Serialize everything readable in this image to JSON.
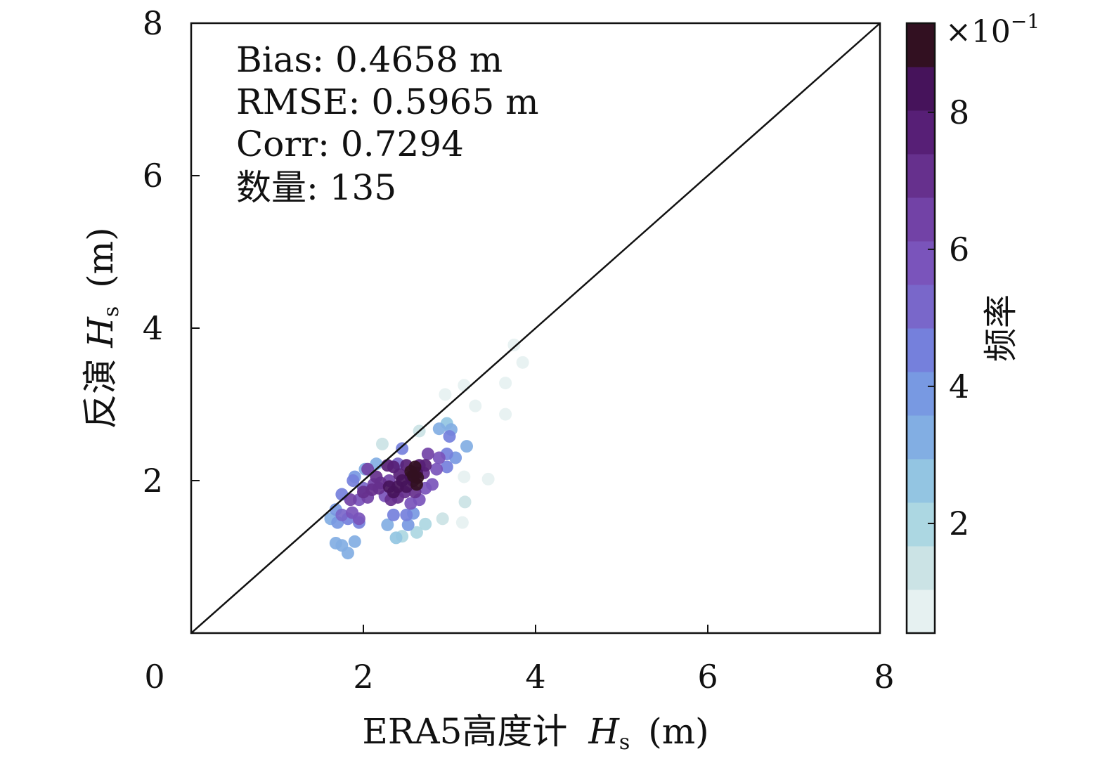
{
  "chart_data": {
    "type": "scatter",
    "xlabel_prefix": "ERA5高度计",
    "xlabel_var": "H",
    "xlabel_sub": "s",
    "xlabel_unit": "(m)",
    "ylabel_prefix": "反演",
    "ylabel_var": "H",
    "ylabel_sub": "s",
    "ylabel_unit": "(m)",
    "xlim": [
      0,
      8
    ],
    "ylim": [
      0,
      8
    ],
    "xticks": [
      "0",
      "2",
      "4",
      "6",
      "8"
    ],
    "yticks": [
      "2",
      "4",
      "6",
      "8"
    ],
    "reference_line": "y = x",
    "stats": [
      "Bias: 0.4658 m",
      "RMSE: 0.5965 m",
      "Corr: 0.7294",
      "数量: 135"
    ],
    "colorbar": {
      "label": "频率",
      "scale_base": "×10",
      "scale_exp": "−1",
      "range": [
        0.4,
        9.3
      ],
      "ticks": [
        "2",
        "4",
        "6",
        "8"
      ],
      "tick_values": [
        2,
        4,
        6,
        8
      ],
      "colors": [
        "#e6f1f1",
        "#cbe3e5",
        "#acd7e2",
        "#93c5e2",
        "#82aee3",
        "#7899e2",
        "#7580dc",
        "#7967ca",
        "#7a54bb",
        "#7242a6",
        "#66308d",
        "#571f76",
        "#46135b",
        "#321021"
      ]
    },
    "points": [
      [
        3.75,
        3.78,
        0.4
      ],
      [
        3.85,
        3.55,
        0.6
      ],
      [
        3.65,
        3.28,
        0.7
      ],
      [
        3.17,
        3.25,
        0.6
      ],
      [
        2.95,
        3.13,
        0.8
      ],
      [
        3.3,
        2.98,
        1.0
      ],
      [
        3.65,
        2.87,
        0.7
      ],
      [
        2.65,
        2.65,
        1.2
      ],
      [
        2.22,
        2.48,
        1.3
      ],
      [
        3.45,
        2.02,
        0.9
      ],
      [
        3.17,
        2.05,
        1.0
      ],
      [
        2.92,
        1.5,
        1.1
      ],
      [
        3.15,
        1.45,
        0.8
      ],
      [
        3.18,
        1.72,
        1.1
      ],
      [
        2.72,
        1.43,
        1.8
      ],
      [
        2.62,
        1.32,
        1.9
      ],
      [
        2.38,
        1.25,
        2.4
      ],
      [
        2.45,
        1.27,
        2.3
      ],
      [
        1.82,
        1.05,
        3.0
      ],
      [
        1.75,
        1.15,
        3.2
      ],
      [
        1.68,
        1.18,
        3.3
      ],
      [
        1.9,
        1.2,
        3.1
      ],
      [
        1.62,
        1.5,
        3.5
      ],
      [
        1.7,
        1.45,
        3.6
      ],
      [
        1.68,
        1.62,
        3.7
      ],
      [
        2.97,
        2.75,
        2.5
      ],
      [
        2.88,
        2.68,
        3.0
      ],
      [
        3.02,
        2.67,
        3.3
      ],
      [
        3.07,
        2.3,
        3.6
      ],
      [
        3.2,
        2.45,
        3.4
      ],
      [
        2.15,
        2.22,
        3.2
      ],
      [
        2.02,
        2.15,
        3.4
      ],
      [
        1.9,
        2.05,
        4.0
      ],
      [
        1.88,
        2.0,
        4.4
      ],
      [
        1.95,
        1.45,
        4.3
      ],
      [
        1.75,
        1.82,
        4.5
      ],
      [
        2.28,
        1.42,
        3.5
      ],
      [
        2.52,
        1.42,
        3.8
      ],
      [
        2.45,
        2.42,
        4.5
      ],
      [
        2.58,
        1.57,
        4.0
      ],
      [
        2.35,
        1.55,
        4.8
      ],
      [
        2.5,
        1.55,
        4.4
      ],
      [
        2.97,
        2.18,
        4.6
      ],
      [
        2.97,
        2.35,
        4.8
      ],
      [
        3.0,
        2.58,
        4.3
      ],
      [
        2.4,
        2.22,
        5.0
      ],
      [
        1.82,
        1.5,
        4.8
      ],
      [
        1.75,
        1.55,
        5.0
      ],
      [
        2.0,
        1.9,
        5.2
      ],
      [
        1.95,
        1.75,
        5.5
      ],
      [
        2.05,
        1.78,
        6.2
      ],
      [
        2.12,
        1.95,
        6.3
      ],
      [
        2.25,
        1.8,
        6.0
      ],
      [
        2.3,
        2.0,
        6.3
      ],
      [
        2.55,
        1.7,
        5.6
      ],
      [
        2.65,
        1.75,
        5.7
      ],
      [
        2.72,
        1.9,
        5.8
      ],
      [
        2.85,
        2.15,
        5.9
      ],
      [
        2.8,
        1.95,
        6.1
      ],
      [
        2.88,
        2.3,
        6.0
      ],
      [
        2.75,
        2.35,
        6.6
      ],
      [
        1.95,
        1.5,
        5.7
      ],
      [
        1.87,
        1.58,
        5.9
      ],
      [
        1.85,
        1.75,
        6.5
      ],
      [
        2.05,
        2.15,
        6.6
      ],
      [
        2.15,
        2.05,
        6.8
      ],
      [
        2.0,
        1.85,
        7.0
      ],
      [
        2.1,
        1.88,
        7.1
      ],
      [
        2.18,
        1.9,
        7.2
      ],
      [
        2.2,
        1.97,
        7.1
      ],
      [
        2.32,
        1.75,
        6.9
      ],
      [
        2.4,
        1.78,
        7.1
      ],
      [
        2.48,
        1.85,
        7.3
      ],
      [
        2.6,
        1.85,
        7.2
      ],
      [
        2.7,
        2.1,
        7.0
      ],
      [
        2.65,
        2.2,
        7.4
      ],
      [
        2.72,
        2.2,
        7.5
      ],
      [
        2.35,
        2.18,
        7.7
      ],
      [
        2.28,
        2.2,
        7.6
      ],
      [
        2.42,
        2.08,
        7.8
      ],
      [
        2.5,
        2.2,
        8.0
      ],
      [
        2.55,
        2.05,
        8.2
      ],
      [
        2.58,
        2.0,
        8.3
      ],
      [
        2.62,
        2.1,
        8.4
      ],
      [
        2.45,
        2.0,
        8.5
      ],
      [
        2.5,
        1.92,
        8.6
      ],
      [
        2.4,
        1.92,
        8.4
      ],
      [
        2.3,
        1.92,
        8.2
      ],
      [
        2.35,
        1.85,
        8.3
      ],
      [
        2.6,
        2.18,
        8.7
      ],
      [
        2.55,
        2.12,
        8.9
      ],
      [
        2.62,
        1.95,
        9.0
      ],
      [
        2.58,
        2.06,
        9.2
      ],
      [
        2.63,
        2.04,
        9.3
      ]
    ]
  }
}
